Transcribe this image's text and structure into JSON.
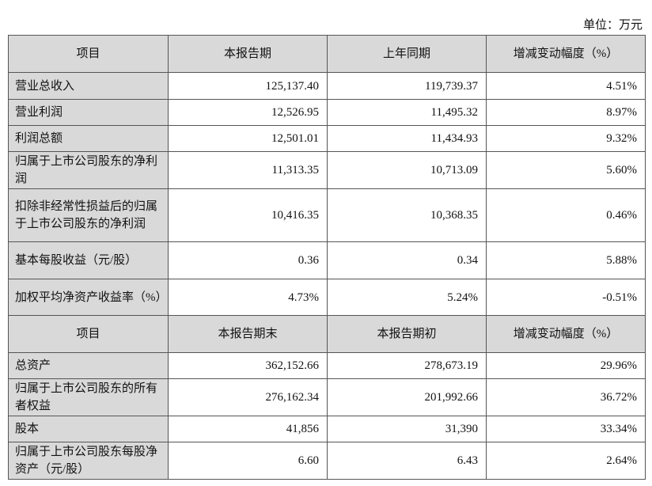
{
  "unit_label": "单位：万元",
  "section1": {
    "headers": [
      "项目",
      "本报告期",
      "上年同期",
      "增减变动幅度（%）"
    ],
    "rows": [
      {
        "item": "营业总收入",
        "current": "125,137.40",
        "previous": "119,739.37",
        "change": "4.51%"
      },
      {
        "item": "营业利润",
        "current": "12,526.95",
        "previous": "11,495.32",
        "change": "8.97%"
      },
      {
        "item": "利润总额",
        "current": "12,501.01",
        "previous": "11,434.93",
        "change": "9.32%"
      },
      {
        "item": "归属于上市公司股东的净利润",
        "current": "11,313.35",
        "previous": "10,713.09",
        "change": "5.60%"
      },
      {
        "item": "扣除非经常性损益后的归属于上市公司股东的净利润",
        "current": "10,416.35",
        "previous": "10,368.35",
        "change": "0.46%"
      },
      {
        "item": "基本每股收益（元/股）",
        "current": "0.36",
        "previous": "0.34",
        "change": "5.88%"
      },
      {
        "item": "加权平均净资产收益率（%）",
        "current": "4.73%",
        "previous": "5.24%",
        "change": "-0.51%"
      }
    ]
  },
  "section2": {
    "headers": [
      "项目",
      "本报告期末",
      "本报告期初",
      "增减变动幅度（%）"
    ],
    "rows": [
      {
        "item": "总资产",
        "current": "362,152.66",
        "previous": "278,673.19",
        "change": "29.96%"
      },
      {
        "item": "归属于上市公司股东的所有者权益",
        "current": "276,162.34",
        "previous": "201,992.66",
        "change": "36.72%"
      },
      {
        "item": "股本",
        "current": "41,856",
        "previous": "31,390",
        "change": "33.34%"
      },
      {
        "item": "归属于上市公司股东每股净资产（元/股）",
        "current": "6.60",
        "previous": "6.43",
        "change": "2.64%"
      }
    ]
  }
}
